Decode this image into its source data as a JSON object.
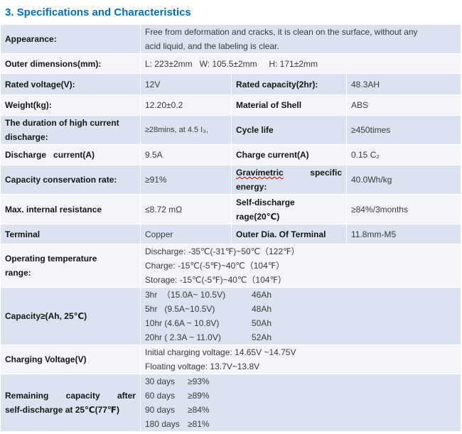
{
  "section_title": "3.  Specifications and Characteristics",
  "appearance": {
    "label": "Appearance:",
    "value_line1": "Free from deformation and cracks, it is clean on the surface, without any",
    "value_line2": "acid liquid, and the labeling is clear."
  },
  "dimensions": {
    "label": "Outer dimensions(mm):",
    "value": "L: 223±2mm   W: 105.5±2mm     H: 171±2mm"
  },
  "rated_voltage": {
    "label": "Rated voltage(V):",
    "value": "12V"
  },
  "rated_capacity": {
    "label": "Rated capacity(2hr):",
    "value": "48.3AH"
  },
  "weight": {
    "label": "Weight(kg):",
    "value": "12.20±0.2"
  },
  "shell": {
    "label": "Material of Shell",
    "value": "ABS"
  },
  "high_current": {
    "label_line1": "The duration of high current",
    "label_line2": "discharge:",
    "value": "≥28mins, at 4.5 I₃,"
  },
  "cycle_life": {
    "label": "Cycle life",
    "value": "≥450times"
  },
  "discharge_current": {
    "label": "Discharge   current(A)",
    "value": "9.5A"
  },
  "charge_current": {
    "label": "Charge current(A)",
    "value": "0.15 C₂"
  },
  "capacity_conservation": {
    "label": "Capacity conservation rate:",
    "value": "≥91%"
  },
  "gravimetric": {
    "label_word1": "Gravimetric",
    "label_word2": "specific",
    "label_line2": "energy:",
    "value": "40.0Wh/kg"
  },
  "internal_resistance": {
    "label": "Max. internal resistance",
    "value": "≤8.72 mΩ"
  },
  "self_discharge": {
    "label_line1": "Self-discharge",
    "label_line2": "rage(20℃)",
    "value": "≥84%/3months"
  },
  "terminal": {
    "label": "Terminal",
    "value": "Copper"
  },
  "outer_dia": {
    "label": "Outer Dia. Of Terminal",
    "value": "11.8mm-M5"
  },
  "operating_temp": {
    "label_line1": "Operating temperature",
    "label_line2": "range:",
    "lines": [
      "Discharge: -35℃(-31℉)~50℃（122℉）",
      "Charge: -15℃(-5℉)~40℃（104℉）",
      "Storage: -15℃(-5℉)~40℃（104℉）"
    ]
  },
  "capacity": {
    "label": "Capacity≥(Ah, 25℃)",
    "rows": [
      {
        "rate": "3hr  （15.0A~ 10.5V)",
        "value": "46Ah"
      },
      {
        "rate": "5hr   (9.5A~10.5V)",
        "value": "48Ah"
      },
      {
        "rate": "10hr (4.6A ~ 10.8V)",
        "value": "50Ah"
      },
      {
        "rate": "20hr ( 2.3A ~ 11.0V)",
        "value": "52Ah"
      }
    ]
  },
  "charging_voltage": {
    "label": "Charging Voltage(V)",
    "lines": [
      "Initial charging voltage: 14.65V ~14.75V",
      "Floating voltage: 13.7V~13.8V"
    ]
  },
  "remaining_capacity": {
    "label_word1": "Remaining",
    "label_word2": "capacity",
    "label_word3": "after",
    "label_line2": "self-discharge at 25℃(77℉)",
    "rows": [
      {
        "days": "30 days",
        "value": "≥93%"
      },
      {
        "days": "60 days",
        "value": "≥89%"
      },
      {
        "days": "90 days",
        "value": "≥84%"
      },
      {
        "days": "180 days",
        "value": "≥81%"
      }
    ]
  }
}
